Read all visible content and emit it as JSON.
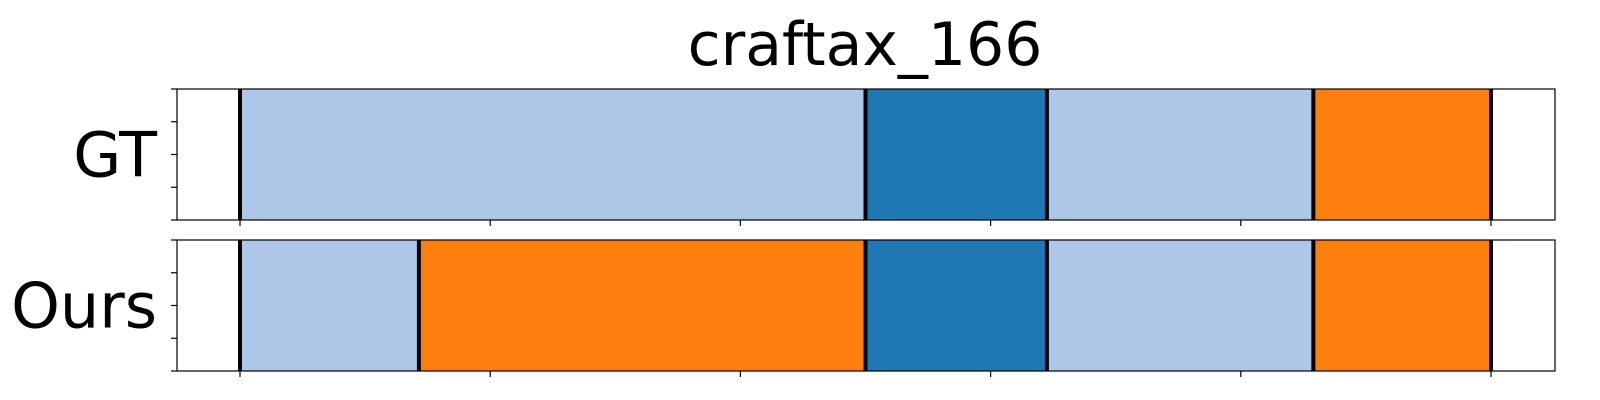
{
  "chart_data": {
    "type": "segmentation",
    "title": "craftax_166",
    "x_range": [
      0,
      100
    ],
    "x_ticks": [
      0,
      20,
      40,
      60,
      80,
      100
    ],
    "colors": {
      "light_blue": "#aec7e8",
      "blue": "#1f77b4",
      "orange": "#ff7f0e",
      "boundary": "#000000"
    },
    "rows": [
      {
        "label": "GT",
        "segments": [
          {
            "start": 0,
            "end": 50,
            "color": "light_blue"
          },
          {
            "start": 50,
            "end": 64.5,
            "color": "blue"
          },
          {
            "start": 64.5,
            "end": 85.8,
            "color": "light_blue"
          },
          {
            "start": 85.8,
            "end": 100,
            "color": "orange"
          }
        ]
      },
      {
        "label": "Ours",
        "segments": [
          {
            "start": 0,
            "end": 14.3,
            "color": "light_blue"
          },
          {
            "start": 14.3,
            "end": 50,
            "color": "orange"
          },
          {
            "start": 50,
            "end": 64.5,
            "color": "blue"
          },
          {
            "start": 64.5,
            "end": 85.8,
            "color": "light_blue"
          },
          {
            "start": 85.8,
            "end": 100,
            "color": "orange"
          }
        ]
      }
    ]
  }
}
